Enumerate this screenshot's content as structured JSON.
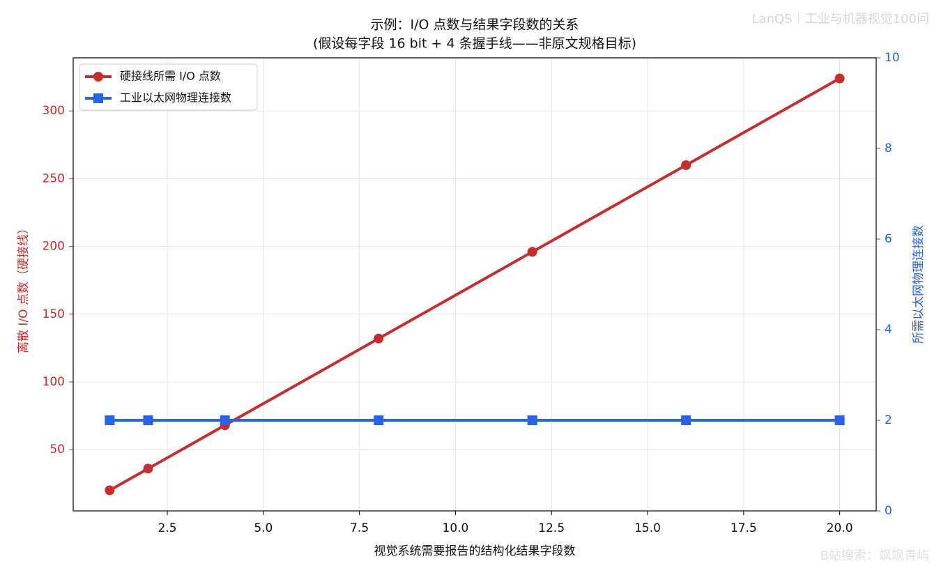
{
  "chart_data": {
    "type": "line",
    "title": "示例：I/O 点数与结果字段数的关系",
    "subtitle": "(假设每字段 16 bit + 4 条握手线——非原文规格目标)",
    "xlabel": "视觉系统需要报告的结构化结果字段数",
    "ylabel": "离散 I/O 点数（硬接线）",
    "y2label": "所需以太网物理连接数",
    "x": [
      1,
      2,
      4,
      8,
      12,
      16,
      20
    ],
    "series": [
      {
        "name": "硬接线所需 I/O 点数",
        "color": "#c62d2d",
        "marker": "circle",
        "values": [
          20,
          36,
          68,
          132,
          196,
          260,
          324
        ]
      },
      {
        "name": "工业以太网物理连接数",
        "color": "#2563eb",
        "marker": "square",
        "axis": "y2",
        "values": [
          2,
          2,
          2,
          2,
          2,
          2,
          2
        ]
      }
    ],
    "xlim": [
      0.05,
      20.95
    ],
    "xticks": [
      2.5,
      {
        "value": 5,
        "label": "5.0"
      },
      7.5,
      {
        "value": 10,
        "label": "10.0"
      },
      12.5,
      {
        "value": 15,
        "label": "15.0"
      },
      17.5,
      {
        "value": 20,
        "label": "20.0"
      }
    ],
    "ylim": [
      4.8,
      339.2
    ],
    "yticks": [
      50,
      100,
      150,
      200,
      250,
      300
    ],
    "y2lim": [
      0,
      10
    ],
    "y2ticks": [
      0,
      2,
      4,
      6,
      8,
      10
    ],
    "grid": true,
    "legend": "upper-left"
  },
  "watermark": {
    "top": "LanQS｜工业与机器视觉100问",
    "bottom": "B站搜索：飒飒青屿"
  }
}
